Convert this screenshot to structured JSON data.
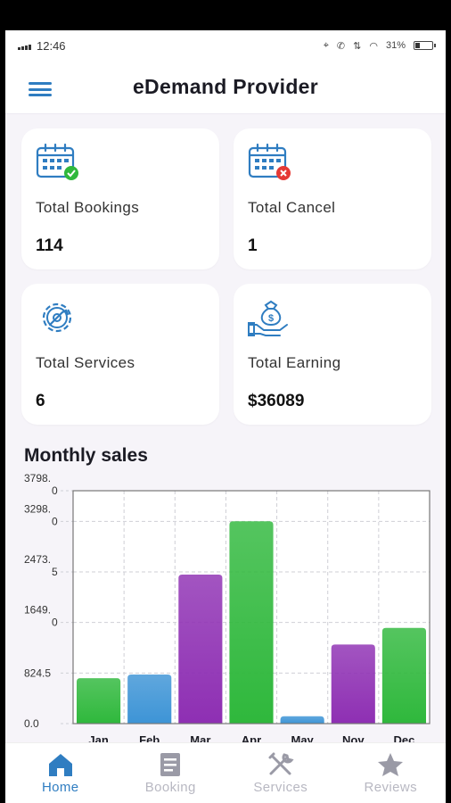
{
  "status_bar": {
    "time": "12:46",
    "battery": "31%"
  },
  "app_bar": {
    "title": "eDemand Provider"
  },
  "cards": [
    {
      "label": "Total Bookings",
      "value": "114",
      "icon": "calendar-check-icon"
    },
    {
      "label": "Total Cancel",
      "value": "1",
      "icon": "calendar-cancel-icon"
    },
    {
      "label": "Total Services",
      "value": "6",
      "icon": "gear-wrench-icon"
    },
    {
      "label": "Total Earning",
      "value": "$36089",
      "icon": "money-bag-hand-icon"
    }
  ],
  "chart_title": "Monthly sales",
  "chart_data": {
    "type": "bar",
    "title": "Monthly sales",
    "categories": [
      "Jan",
      "Feb",
      "Mar",
      "Apr",
      "May",
      "Nov",
      "Dec"
    ],
    "values": [
      740,
      800,
      2430,
      3300,
      120,
      1290,
      1560
    ],
    "bar_colors": [
      "#2fb83c",
      "#3d94d6",
      "#8e2fb3",
      "#2fb83c",
      "#3d94d6",
      "#8e2fb3",
      "#2fb83c"
    ],
    "y_ticks": [
      {
        "value": 0,
        "label": [
          "0.0"
        ]
      },
      {
        "value": 824.5,
        "label": [
          "824.5"
        ]
      },
      {
        "value": 1649,
        "label": [
          "1649.",
          "0"
        ]
      },
      {
        "value": 2473.5,
        "label": [
          "2473.",
          "5"
        ]
      },
      {
        "value": 3298,
        "label": [
          "3298.",
          "0"
        ]
      },
      {
        "value": 3798,
        "label": [
          "3798.",
          "0"
        ]
      }
    ],
    "ylim": [
      0,
      3798
    ],
    "xlabel": "",
    "ylabel": "",
    "grid": true
  },
  "nav": [
    {
      "label": "Home",
      "icon": "home-icon",
      "active": true
    },
    {
      "label": "Booking",
      "icon": "document-icon",
      "active": false
    },
    {
      "label": "Services",
      "icon": "tools-icon",
      "active": false
    },
    {
      "label": "Reviews",
      "icon": "star-icon",
      "active": false
    }
  ],
  "colors": {
    "accent": "#2f7dc1",
    "green": "#2fb83c",
    "red": "#e53935",
    "purple": "#8e2fb3",
    "blue": "#3d94d6"
  }
}
